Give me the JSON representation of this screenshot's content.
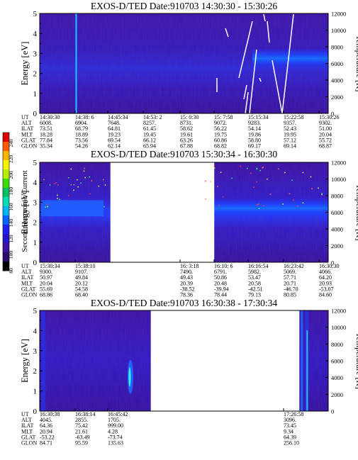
{
  "colorbar": {
    "label": "Second Harmonic Current",
    "ticks": [
      "240",
      "220",
      "200",
      "180",
      "160",
      "140",
      "120",
      "100",
      "80"
    ],
    "colors": [
      "#d80000",
      "#ff5a00",
      "#ffb400",
      "#f5f500",
      "#b4f000",
      "#3cdc00",
      "#00c060",
      "#00dcb4",
      "#00b4f0",
      "#0064ff",
      "#1e1ef0",
      "#2814c8",
      "#3c0f9c",
      "#2a0a6a",
      "#000000"
    ]
  },
  "chart_data": [
    {
      "type": "heatmap",
      "title": "EXOS-D/TED   Date:910703   14:30:30 - 15:30:26",
      "ylabel": "Energy [eV]",
      "y2label": "Temperature [K]",
      "ylim": [
        0,
        5
      ],
      "y2lim": [
        0,
        12000
      ],
      "yticks": [
        "0",
        "1",
        "2",
        "3",
        "4",
        "5"
      ],
      "y2ticks": [
        "0",
        "2000",
        "4000",
        "6000",
        "8000",
        "10000",
        "12000"
      ],
      "row_labels": [
        "UT",
        "ALT",
        "ILAT",
        "MLT",
        "GLAT",
        "GLON"
      ],
      "columns": [
        [
          "14:30:30",
          "6008.",
          "73.51",
          "18.28",
          "77.84",
          "35.34"
        ],
        [
          "14:38: 6",
          "6904.",
          "68.79",
          "18.89",
          "73.56",
          "54.26"
        ],
        [
          "14:45:34",
          "7648.",
          "64.81",
          "19.23",
          "69.54",
          "62.14"
        ],
        [
          "14:53: 2",
          "8257.",
          "61.45",
          "19.45",
          "66.12",
          "65.94"
        ],
        [
          "15: 0:30",
          "8731.",
          "58.62",
          "19.61",
          "63.26",
          "67.88"
        ],
        [
          "15: 7:58",
          "9072.",
          "56.22",
          "19.75",
          "60.86",
          "68.82"
        ],
        [
          "15:15:34",
          "9283.",
          "54.14",
          "19.86",
          "58.80",
          "69.17"
        ],
        [
          "15:22:58",
          "9357.",
          "52.43",
          "19.95",
          "57.12",
          "69.14"
        ],
        [
          "15:30:26",
          "9302.",
          "51.00",
          "20.04",
          "55.72",
          "68.87"
        ]
      ],
      "data_gaps": []
    },
    {
      "type": "heatmap",
      "title": "EXOS-D/TED   Date:910703   15:30:34 - 16:30:30",
      "ylabel": "Energy [eV]",
      "y2label": "Temperature [K]",
      "ylim": [
        0,
        5
      ],
      "y2lim": [
        0,
        12000
      ],
      "yticks": [
        "0",
        "1",
        "2",
        "3",
        "4",
        "5"
      ],
      "y2ticks": [
        "0",
        "2000",
        "4000",
        "6000",
        "8000",
        "10000",
        "12000"
      ],
      "row_labels": [
        "UT",
        "ALT",
        "ILAT",
        "MLT",
        "GLAT",
        "GLON"
      ],
      "columns": [
        [
          "15:30:34",
          "9300.",
          "50.97",
          "20.04",
          "55.69",
          "68.86"
        ],
        [
          "15:38:10",
          "9107.",
          "49.84",
          "20.12",
          "54.58",
          "68.40"
        ],
        [
          "",
          "",
          "",
          "",
          "",
          ""
        ],
        [
          "",
          "",
          "",
          "",
          "",
          ""
        ],
        [
          "16: 3:18",
          "7490.",
          "49.43",
          "20.39",
          "-38.52",
          "78.36"
        ],
        [
          "16:10: 6",
          "6791.",
          "50.86",
          "20.48",
          "-39.94",
          "78.44"
        ],
        [
          "16:16:54",
          "5982.",
          "53.47",
          "20.58",
          "-42.51",
          "79.13"
        ],
        [
          "16:23:42",
          "5069.",
          "57.71",
          "20.71",
          "-46.70",
          "80.85"
        ],
        [
          "16:30:30",
          "4066.",
          "64.20",
          "20.93",
          "-53.07",
          "84.60"
        ]
      ],
      "data_gaps": [
        [
          0.245,
          0.605
        ]
      ]
    },
    {
      "type": "heatmap",
      "title": "EXOS-D/TED   Date:910703   16:30:38 - 17:30:34",
      "ylabel": "Energy [eV]",
      "y2label": "Temperature [K]",
      "ylim": [
        0,
        5
      ],
      "y2lim": [
        0,
        12000
      ],
      "yticks": [
        "0",
        "1",
        "2",
        "3",
        "4",
        "5"
      ],
      "y2ticks": [
        "0",
        "2000",
        "4000",
        "6000",
        "8000",
        "10000",
        "12000"
      ],
      "row_labels": [
        "UT",
        "ALT",
        "ILAT",
        "MLT",
        "GLAT",
        "GLON"
      ],
      "columns": [
        [
          "16:30:38",
          "4045.",
          "64.36",
          "20.94",
          "-53.22",
          "84.71"
        ],
        [
          "16:38:14",
          "2855.",
          "75.42",
          "21.61",
          "-63.49",
          "95.59"
        ],
        [
          "16:45:42",
          "1705.",
          "999.00",
          "4.28",
          "-73.74",
          "135.63"
        ],
        [
          "",
          "",
          "",
          "",
          "",
          ""
        ],
        [
          "",
          "",
          "",
          "",
          "",
          ""
        ],
        [
          "",
          "",
          "",
          "",
          "",
          ""
        ],
        [
          "",
          "",
          "",
          "",
          "",
          ""
        ],
        [
          "17:26:58",
          "3096.",
          "73.45",
          "9.34",
          "64.39",
          "256.10"
        ],
        [
          "",
          "",
          "",
          "",
          "",
          ""
        ]
      ],
      "data_gaps": [
        [
          0.385,
          0.9
        ]
      ]
    }
  ]
}
